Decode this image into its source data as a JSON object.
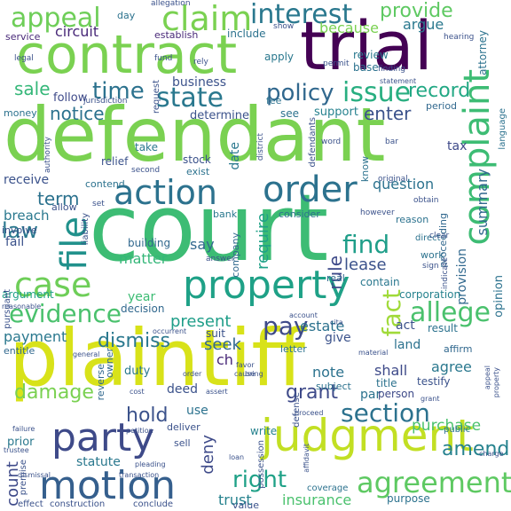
{
  "words": [
    {
      "text": "court",
      "color": "#3dbc74"
    },
    {
      "text": "plaintiff",
      "color": "#d8e219"
    },
    {
      "text": "defendant",
      "color": "#7ad151"
    },
    {
      "text": "trial",
      "color": "#440154"
    },
    {
      "text": "contract",
      "color": "#7ad151"
    },
    {
      "text": "judgment",
      "color": "#c2df23"
    },
    {
      "text": "property",
      "color": "#1fa187"
    },
    {
      "text": "party",
      "color": "#3e4a89"
    },
    {
      "text": "motion",
      "color": "#355f8d"
    },
    {
      "text": "order",
      "color": "#2c728e"
    },
    {
      "text": "action",
      "color": "#2c728e"
    },
    {
      "text": "claim",
      "color": "#7ad151"
    },
    {
      "text": "case",
      "color": "#6ece58"
    },
    {
      "text": "complaint",
      "color": "#3dbc74"
    },
    {
      "text": "file",
      "color": "#21918c"
    },
    {
      "text": "appeal",
      "color": "#6ece58"
    },
    {
      "text": "interest",
      "color": "#2a788e"
    },
    {
      "text": "provide",
      "color": "#5ec962"
    },
    {
      "text": "state",
      "color": "#2a788e"
    },
    {
      "text": "issue",
      "color": "#28ae80"
    },
    {
      "text": "evidence",
      "color": "#4ac16d"
    },
    {
      "text": "allege",
      "color": "#4ac16d"
    },
    {
      "text": "agreement",
      "color": "#5ec962"
    },
    {
      "text": "section",
      "color": "#2c728e"
    },
    {
      "text": "right",
      "color": "#1fa187"
    },
    {
      "text": "time",
      "color": "#2c728e"
    },
    {
      "text": "policy",
      "color": "#31688e"
    },
    {
      "text": "record",
      "color": "#22a884"
    },
    {
      "text": "fact",
      "color": "#a0da39"
    },
    {
      "text": "pay",
      "color": "#3e4a89"
    },
    {
      "text": "find",
      "color": "#1f9e89"
    },
    {
      "text": "law",
      "color": "#2a788e"
    },
    {
      "text": "hold",
      "color": "#3b528b"
    },
    {
      "text": "grant",
      "color": "#3e4a89"
    },
    {
      "text": "damage",
      "color": "#7ad151"
    },
    {
      "text": "dismiss",
      "color": "#2a788e"
    },
    {
      "text": "notice",
      "color": "#2c728e"
    },
    {
      "text": "sale",
      "color": "#35b779"
    },
    {
      "text": "enter",
      "color": "#3b528b"
    },
    {
      "text": "term",
      "color": "#2c728e"
    },
    {
      "text": "require",
      "color": "#1fa187"
    },
    {
      "text": "amend",
      "color": "#26828e"
    },
    {
      "text": "purchase",
      "color": "#4ac16d"
    },
    {
      "text": "because",
      "color": "#7ad151"
    },
    {
      "text": "argue",
      "color": "#2a788e"
    },
    {
      "text": "circuit",
      "color": "#482878"
    },
    {
      "text": "business",
      "color": "#3b528b"
    },
    {
      "text": "summary",
      "color": "#31688e"
    },
    {
      "text": "rule",
      "color": "#3e4a89"
    },
    {
      "text": "lease",
      "color": "#3b528b"
    },
    {
      "text": "matter",
      "color": "#35b779"
    },
    {
      "text": "present",
      "color": "#1f9e89"
    },
    {
      "text": "seek",
      "color": "#31688e"
    },
    {
      "text": "estate",
      "color": "#2c728e"
    },
    {
      "text": "trust",
      "color": "#26828e"
    },
    {
      "text": "insurance",
      "color": "#4ac16d"
    },
    {
      "text": "payment",
      "color": "#2a788e"
    },
    {
      "text": "say",
      "color": "#31688e"
    },
    {
      "text": "question",
      "color": "#2c728e"
    },
    {
      "text": "breach",
      "color": "#2a788e"
    },
    {
      "text": "count",
      "color": "#3e4a89"
    },
    {
      "text": "statute",
      "color": "#2a788e"
    },
    {
      "text": "deny",
      "color": "#3e4a89"
    },
    {
      "text": "note",
      "color": "#2c728e"
    },
    {
      "text": "agree",
      "color": "#2a788e"
    },
    {
      "text": "use",
      "color": "#2c728e"
    },
    {
      "text": "act",
      "color": "#3b528b"
    },
    {
      "text": "give",
      "color": "#3b528b"
    },
    {
      "text": "land",
      "color": "#2c728e"
    },
    {
      "text": "ch",
      "color": "#482878"
    },
    {
      "text": "shall",
      "color": "#3e4a89"
    },
    {
      "text": "par",
      "color": "#2c728e"
    },
    {
      "text": "deed",
      "color": "#3b528b"
    },
    {
      "text": "duty",
      "color": "#2a788e"
    },
    {
      "text": "opinion",
      "color": "#2c728e"
    },
    {
      "text": "provision",
      "color": "#31688e"
    },
    {
      "text": "support",
      "color": "#26828e"
    },
    {
      "text": "tax",
      "color": "#3e4a89"
    },
    {
      "text": "contain",
      "color": "#2a788e"
    },
    {
      "text": "corporation",
      "color": "#26828e"
    },
    {
      "text": "year",
      "color": "#3dbc74"
    },
    {
      "text": "decision",
      "color": "#31688e"
    },
    {
      "text": "building",
      "color": "#31688e"
    },
    {
      "text": "fail",
      "color": "#3b528b"
    },
    {
      "text": "receive",
      "color": "#3b528b"
    },
    {
      "text": "follow",
      "color": "#3e4a89"
    },
    {
      "text": "apply",
      "color": "#2a788e"
    },
    {
      "text": "include",
      "color": "#2c728e"
    },
    {
      "text": "review",
      "color": "#2a788e"
    },
    {
      "text": "determine",
      "color": "#3b528b"
    },
    {
      "text": "relief",
      "color": "#3b528b"
    },
    {
      "text": "see",
      "color": "#2c728e"
    },
    {
      "text": "date",
      "color": "#2a788e"
    },
    {
      "text": "take",
      "color": "#2a788e"
    },
    {
      "text": "stock",
      "color": "#3b528b"
    },
    {
      "text": "testify",
      "color": "#3b528b"
    },
    {
      "text": "title",
      "color": "#2c728e"
    },
    {
      "text": "subject",
      "color": "#2c728e"
    },
    {
      "text": "person",
      "color": "#3e4a89"
    },
    {
      "text": "attorney",
      "color": "#2c728e"
    },
    {
      "text": "base",
      "color": "#2c728e"
    },
    {
      "text": "result",
      "color": "#2c728e"
    },
    {
      "text": "letter",
      "color": "#2c728e"
    },
    {
      "text": "suit",
      "color": "#3b528b"
    },
    {
      "text": "allow",
      "color": "#3b528b"
    },
    {
      "text": "involve",
      "color": "#3b528b"
    },
    {
      "text": "argument",
      "color": "#1fa187"
    },
    {
      "text": "deliver",
      "color": "#3b528b"
    },
    {
      "text": "sell",
      "color": "#3b528b"
    },
    {
      "text": "prior",
      "color": "#2a788e"
    },
    {
      "text": "write",
      "color": "#26828e"
    },
    {
      "text": "work",
      "color": "#2c728e"
    },
    {
      "text": "real",
      "color": "#31688e"
    },
    {
      "text": "bank",
      "color": "#2a788e"
    },
    {
      "text": "consider",
      "color": "#2c728e"
    },
    {
      "text": "establish",
      "color": "#482878"
    },
    {
      "text": "service",
      "color": "#482878"
    },
    {
      "text": "exist",
      "color": "#2c728e"
    },
    {
      "text": "contend",
      "color": "#2c728e"
    },
    {
      "text": "entitle",
      "color": "#31688e"
    },
    {
      "text": "reverse",
      "color": "#31688e"
    },
    {
      "text": "owner",
      "color": "#31688e"
    },
    {
      "text": "company",
      "color": "#31688e"
    },
    {
      "text": "affirm",
      "color": "#31688e"
    },
    {
      "text": "proceeding",
      "color": "#31688e"
    },
    {
      "text": "period",
      "color": "#31688e"
    },
    {
      "text": "money",
      "color": "#2c728e"
    },
    {
      "text": "day",
      "color": "#2c728e"
    },
    {
      "text": "fee",
      "color": "#2c728e"
    },
    {
      "text": "know",
      "color": "#2c728e"
    },
    {
      "text": "language",
      "color": "#2c728e"
    },
    {
      "text": "reason",
      "color": "#2c728e"
    },
    {
      "text": "coverage",
      "color": "#2c728e"
    },
    {
      "text": "purpose",
      "color": "#2c728e"
    },
    {
      "text": "public",
      "color": "#2c728e"
    },
    {
      "text": "direct",
      "color": "#2c728e"
    },
    {
      "text": "conclude",
      "color": "#3b528b"
    },
    {
      "text": "value",
      "color": "#3b528b"
    },
    {
      "text": "construction",
      "color": "#3b528b"
    },
    {
      "text": "effect",
      "color": "#3b528b"
    },
    {
      "text": "premise",
      "color": "#3b528b"
    },
    {
      "text": "defense",
      "color": "#3b528b"
    },
    {
      "text": "possession",
      "color": "#3b528b"
    },
    {
      "text": "pursuant",
      "color": "#3b528b"
    },
    {
      "text": "liability",
      "color": "#3b528b"
    },
    {
      "text": "defendants",
      "color": "#3b528b"
    },
    {
      "text": "request",
      "color": "#3b528b"
    },
    {
      "text": "jurisdiction",
      "color": "#3b528b"
    },
    {
      "text": "authority",
      "color": "#3b528b"
    },
    {
      "text": "second",
      "color": "#3b528b"
    },
    {
      "text": "district",
      "color": "#3b528b"
    },
    {
      "text": "allegation",
      "color": "#3b528b"
    },
    {
      "text": "fund",
      "color": "#3b528b"
    },
    {
      "text": "legal",
      "color": "#3b528b"
    },
    {
      "text": "rely",
      "color": "#3b528b"
    },
    {
      "text": "permit",
      "color": "#3b528b"
    },
    {
      "text": "finding",
      "color": "#3b528b"
    },
    {
      "text": "statement",
      "color": "#3b528b"
    },
    {
      "text": "hearing",
      "color": "#3b528b"
    },
    {
      "text": "show",
      "color": "#3b528b"
    },
    {
      "text": "word",
      "color": "#3b528b"
    },
    {
      "text": "bar",
      "color": "#3b528b"
    },
    {
      "text": "original",
      "color": "#3b528b"
    },
    {
      "text": "obtain",
      "color": "#3b528b"
    },
    {
      "text": "however",
      "color": "#3b528b"
    },
    {
      "text": "set",
      "color": "#3b528b"
    },
    {
      "text": "answer",
      "color": "#3b528b"
    },
    {
      "text": "clear",
      "color": "#3b528b"
    },
    {
      "text": "sign",
      "color": "#3b528b"
    },
    {
      "text": "indicate",
      "color": "#3b528b"
    },
    {
      "text": "reasonable",
      "color": "#3b528b"
    },
    {
      "text": "account",
      "color": "#3b528b"
    },
    {
      "text": "occurrent",
      "color": "#3b528b"
    },
    {
      "text": "general",
      "color": "#3b528b"
    },
    {
      "text": "material",
      "color": "#3b528b"
    },
    {
      "text": "favor",
      "color": "#3b528b"
    },
    {
      "text": "bring",
      "color": "#3b528b"
    },
    {
      "text": "cause",
      "color": "#3b528b"
    },
    {
      "text": "cost",
      "color": "#3b528b"
    },
    {
      "text": "assert",
      "color": "#3b528b"
    },
    {
      "text": "appeal",
      "color": "#3b528b"
    },
    {
      "text": "property",
      "color": "#3b528b"
    },
    {
      "text": "failure",
      "color": "#3b528b"
    },
    {
      "text": "petition",
      "color": "#3b528b"
    },
    {
      "text": "trustee",
      "color": "#3b528b"
    },
    {
      "text": "dismissal",
      "color": "#3b528b"
    },
    {
      "text": "pleading",
      "color": "#3b528b"
    },
    {
      "text": "transaction",
      "color": "#3b528b"
    },
    {
      "text": "affidavit",
      "color": "#3b528b"
    },
    {
      "text": "loan",
      "color": "#3b528b"
    },
    {
      "text": "charge",
      "color": "#3b528b"
    },
    {
      "text": "proceed",
      "color": "#3b528b"
    },
    {
      "text": "grant",
      "color": "#3b528b"
    },
    {
      "text": "cita",
      "color": "#3b528b"
    },
    {
      "text": "order",
      "color": "#3b528b"
    }
  ]
}
